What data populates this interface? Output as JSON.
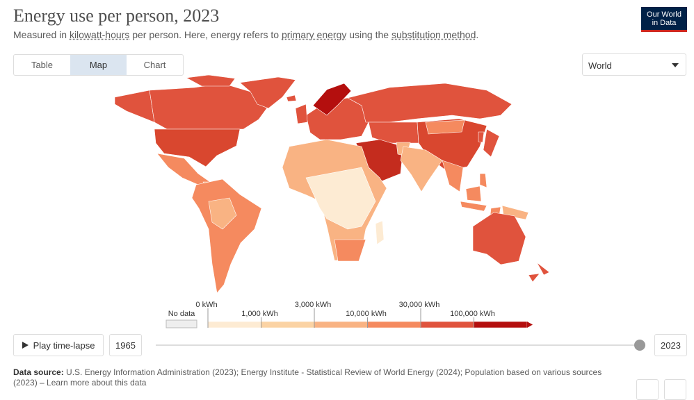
{
  "header": {
    "title": "Energy use per person, 2023",
    "subtitle": [
      {
        "text": "Measured in ",
        "link": false
      },
      {
        "text": "kilowatt-hours",
        "link": true
      },
      {
        "text": " per person. Here, energy refers to ",
        "link": false
      },
      {
        "text": "primary energy",
        "link": true
      },
      {
        "text": " using the ",
        "link": false
      },
      {
        "text": "substitution method",
        "link": true
      },
      {
        "text": ".",
        "link": false
      }
    ],
    "logo": [
      "Our World",
      "in Data"
    ]
  },
  "tabs": [
    "Table",
    "Map",
    "Chart"
  ],
  "active_tab": 1,
  "region": "World",
  "legend": {
    "no_data": "No data",
    "labels": [
      "0 kWh",
      "1,000 kWh",
      "3,000 kWh",
      "10,000 kWh",
      "30,000 kWh",
      "100,000 kWh"
    ],
    "colors": [
      "#fdebd3",
      "#fbd3a4",
      "#f9b383",
      "#f58a5f",
      "#e0533d",
      "#b40f0e"
    ]
  },
  "timeline": {
    "play": "Play time-lapse",
    "start": "1965",
    "end": "2023"
  },
  "footer": {
    "label": "Data source:",
    "text": "U.S. Energy Information Administration (2023); Energy Institute - Statistical Review of World Energy (2024); Population based on various sources (2023) – Learn more about this data"
  }
}
